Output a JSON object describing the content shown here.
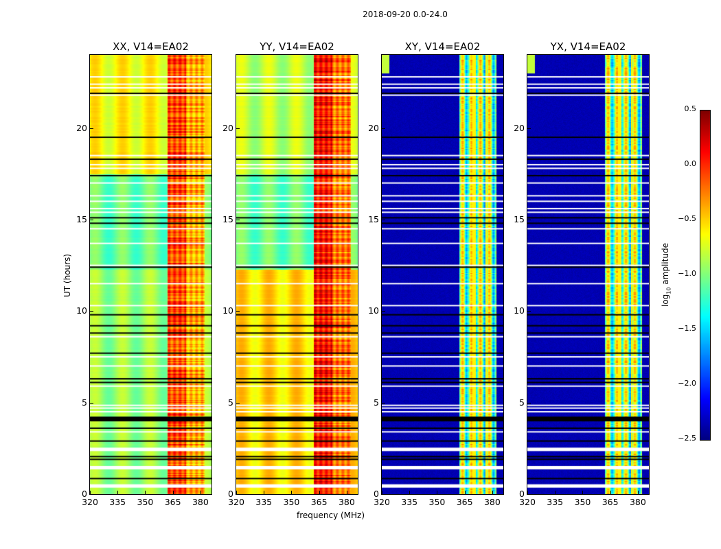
{
  "chart_data": {
    "type": "heatmap",
    "suptitle": "2018-09-20 0.0-24.0",
    "xlabel": "frequency (MHz)",
    "ylabel": "UT (hours)",
    "xlim": [
      320,
      386
    ],
    "ylim": [
      0,
      24
    ],
    "xticks": [
      "320",
      "335",
      "350",
      "365",
      "380"
    ],
    "xtick_values": [
      320,
      335,
      350,
      365,
      380
    ],
    "yticks": [
      "0",
      "5",
      "10",
      "15",
      "20"
    ],
    "ytick_values": [
      0,
      5,
      10,
      15,
      20
    ],
    "panels": [
      {
        "title": "XX, V14=EA02",
        "kind": "parallel",
        "base": -1.1,
        "rfi_level": -0.15
      },
      {
        "title": "YY, V14=EA02",
        "kind": "parallel_yy",
        "base": -0.9,
        "rfi_level": 0.0
      },
      {
        "title": "XY, V14=EA02",
        "kind": "cross",
        "base": -2.4,
        "rfi_level": -1.1
      },
      {
        "title": "YX, V14=EA02",
        "kind": "cross",
        "base": -2.4,
        "rfi_level": -1.1
      }
    ],
    "rfi_band_mhz": [
      362,
      382
    ],
    "flagged_white_hours": [
      0.5,
      1.5,
      2.5,
      3.4,
      4.5,
      4.7,
      4.85,
      5.9,
      7.0,
      7.5,
      8.6,
      10.3,
      11.5,
      12.5,
      13.7,
      14.5,
      15.4,
      15.6,
      16.0,
      16.3,
      17.0,
      17.8,
      18.0,
      18.5,
      21.8,
      22.2,
      22.4,
      22.8
    ],
    "flagged_black_hours": [
      0.85,
      1.9,
      2.05,
      2.9,
      3.6,
      4.2,
      6.1,
      6.3,
      7.7,
      8.8,
      9.2,
      9.8,
      12.4,
      14.8,
      15.1,
      17.4,
      18.3,
      19.5,
      21.9
    ],
    "colorbar": {
      "label": "log10 amplitude",
      "label_main": "amplitude",
      "label_prefix": "log",
      "label_sub": "10",
      "range": [
        -2.5,
        0.5
      ],
      "ticks": [
        "0.5",
        "0.0",
        "−0.5",
        "−1.0",
        "−1.5",
        "−2.0",
        "−2.5"
      ],
      "tick_values": [
        0.5,
        0.0,
        -0.5,
        -1.0,
        -1.5,
        -2.0,
        -2.5
      ],
      "colormap": "jet"
    }
  }
}
